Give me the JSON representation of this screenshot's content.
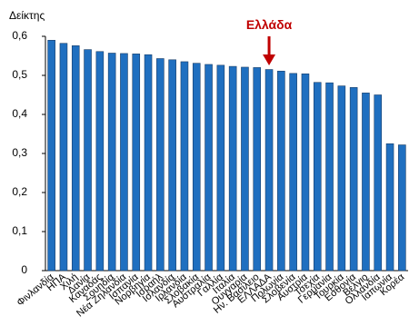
{
  "chart_data": {
    "type": "bar",
    "y_label": "Δείκτης",
    "categories": [
      "Φινλανδία",
      "ΗΠΑ",
      "Χιλή",
      "Δανία",
      "Καναδάς",
      "Σουηδία",
      "Νέα Ζηλανδία",
      "Ισπανία",
      "Νορβηγία",
      "Ισραήλ",
      "Ισλανδία",
      "Ιρλανδία",
      "Σλοβακία",
      "Αυστραλία",
      "Γαλλία",
      "Ιταλία",
      "Ουγγαρία",
      "Ην. Βασίλειο",
      "ΕΛΛΑΔΑ",
      "Πολωνία",
      "Σλοβενία",
      "Αυστρία",
      "Τσεχία",
      "Γερμανία",
      "Τουρκία",
      "Εσθονία",
      "Βέλγιο",
      "Ολλανδία",
      "Ιαπωνία",
      "Κορέα"
    ],
    "values": [
      0.59,
      0.582,
      0.576,
      0.566,
      0.561,
      0.557,
      0.556,
      0.555,
      0.553,
      0.543,
      0.54,
      0.535,
      0.531,
      0.528,
      0.526,
      0.523,
      0.521,
      0.52,
      0.515,
      0.511,
      0.505,
      0.504,
      0.482,
      0.481,
      0.473,
      0.469,
      0.455,
      0.45,
      0.325,
      0.322
    ],
    "color": "#1f6fc0",
    "ylim": [
      0,
      0.6
    ],
    "yticks": [
      {
        "value": 0,
        "label": "0"
      },
      {
        "value": 0.1,
        "label": "0,1"
      },
      {
        "value": 0.2,
        "label": "0,2"
      },
      {
        "value": 0.3,
        "label": "0,3"
      },
      {
        "value": 0.4,
        "label": "0,4"
      },
      {
        "value": 0.5,
        "label": "0,5"
      },
      {
        "value": 0.6,
        "label": "0,6"
      }
    ],
    "annotation": {
      "text": "Ελλάδα",
      "category_index": 18,
      "color": "#c00000"
    }
  }
}
